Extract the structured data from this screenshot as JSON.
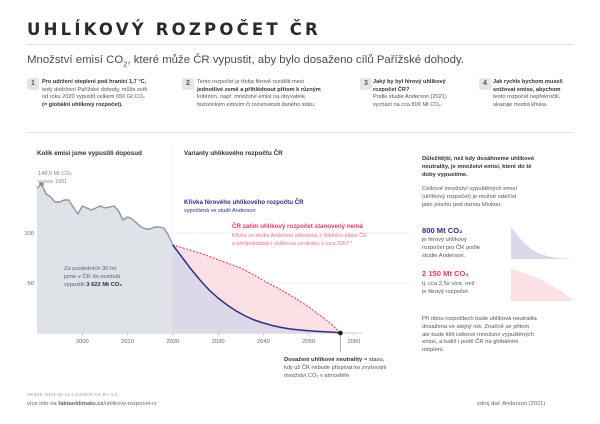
{
  "header": {
    "title": "UHLÍKOVÝ ROZPOČET ČR",
    "subtitle_pre": "Množství emisí CO",
    "subtitle_sub": "2",
    "subtitle_post": ", které může ČR vypustit, aby bylo dosaženo cílů Pařížské dohody."
  },
  "steps": [
    {
      "num": "1",
      "l1": "Pro udržení oteplení pod hranicí 1,7 °C,",
      "l2": "tedy dodržení Pařížské dohody, může svět",
      "l3": "od roku 2020 vypustit celkem 650 Gt CO₂",
      "l4": "(= globální uhlíkový rozpočet)."
    },
    {
      "num": "2",
      "l1": "Tento rozpočet je třeba férově rozdělit mezi",
      "l2": "jednotlivé země a přihlédnout přitom k různým",
      "l3": "kritériím, např. množství emisí na obyvatele,",
      "l4": "historickým emisím či rozvinutosti daného státu."
    },
    {
      "num": "3",
      "l1": "Jaký by byl férový uhlíkový",
      "l2": "rozpočet ČR?",
      "l3": "Podle studie Anderson (2021)",
      "l4": "vychází na cca 800 Mt CO₂."
    },
    {
      "num": "4",
      "l1": "Jak rychle bychom museli",
      "l2": "snižovat emise, abychom",
      "l3": "tento rozpočet nepřekročili,",
      "l4": "ukazuje modrá křivka."
    }
  ],
  "chart_labels": {
    "past_heading": "Kolik emisí jsme vypustili doposud",
    "future_heading": "Varianty uhlíkového rozpočtu ČR",
    "peak_value": "148,9 Mt CO₂",
    "peak_year": "v roce 1991",
    "past_total_l1": "Za posledních 30 let",
    "past_total_l2": "jsme v ČR do ovzduší",
    "past_total_l3_pre": "vypustili ",
    "past_total_l3_value": "3 622 Mt CO₂",
    "blue_curve_title": "Křivka férového uhlíkového rozpočtu ČR",
    "blue_curve_sub": "vypočtená ve studii Anderson",
    "red_curve_title": "ČR zatím uhlíkový rozpočet stanovený nemá",
    "red_curve_sub1": "Křivka ze studie Anderson odvozená z vládního plánu ČR",
    "red_curve_sub2": "a předpokládající uhlíkovou neutralitu v roce 2057 *",
    "neutral_title": "Dosažení uhlíkové neutrality",
    "neutral_l1": " = stavu,",
    "neutral_l2": "kdy už ČR nebude přispívat ke zvyšování",
    "neutral_l3": "množství CO₂ v atmosféře"
  },
  "side_panel": {
    "p1_l1": "Důležitější, než kdy dosáhneme uhlíkové",
    "p1_l2": "neutrality, je množství emisí, které do té",
    "p1_l3": "doby vypustíme.",
    "p2_l1": "Celkové množství vypuštěných emisí",
    "p2_l2": "(uhlíkový rozpočet) je možné odečíst",
    "p2_l3": "jako plochu pod danou křivkou.",
    "blue_value": "800 Mt CO₂",
    "blue_l1": "je férový uhlíkový",
    "blue_l2": "rozpočet pro ČR podle",
    "blue_l3": "studie Anderson.",
    "red_value": "2 150 Mt CO₂",
    "red_l1": "tj. cca 2,5x více, než",
    "red_l2": "je férový rozpočet.",
    "p3_l1": "Při obou rozpočtech bude uhlíková neutralita",
    "p3_l2": "dosažena ve stejný rok. Značně se přitom",
    "p3_l3": "ale bude lišit celkové množství vypuštěných",
    "p3_l4": "emisí, a tudíž i podíl ČR na globálním",
    "p3_l5": "oteplení."
  },
  "footer": {
    "version": "VERZE 2023-01-13   LICENCE CC BY 4.0",
    "info_pre": "více info na ",
    "info_site": "faktaoklimatu.cz",
    "info_path": "/uhlikovy-rozpocet-cr",
    "source": "zdroj dat: Anderson (2021)"
  },
  "colors": {
    "history": "#8a95a1",
    "history_fill": "#dfe3e7",
    "blue": "#2e2f87",
    "blue_fill": "#dcd8ea",
    "red": "#e83a57",
    "red_fill": "#fbe1e6",
    "pink_text": "#ee6f85"
  },
  "chart_data": {
    "type": "area",
    "x_ticks": [
      "2000",
      "2010",
      "2020",
      "2030",
      "2040",
      "2050",
      "2060"
    ],
    "y_ticks": [
      "50",
      "100"
    ],
    "xlim": [
      1990,
      2062
    ],
    "ylim": [
      0,
      160
    ],
    "series": [
      {
        "name": "historical",
        "x": [
          1990,
          1991,
          1992,
          1993,
          1994,
          1995,
          1996,
          1997,
          1998,
          1999,
          2000,
          2001,
          2002,
          2003,
          2004,
          2005,
          2006,
          2007,
          2008,
          2009,
          2010,
          2011,
          2012,
          2013,
          2014,
          2015,
          2016,
          2017,
          2018,
          2019,
          2020
        ],
        "y": [
          145,
          148.9,
          139,
          136,
          131,
          131,
          133,
          133,
          126,
          119,
          127,
          125,
          123,
          125,
          127,
          125,
          126,
          127,
          122,
          113,
          116,
          114,
          110,
          106,
          104,
          104,
          106,
          106,
          105,
          98,
          88
        ]
      },
      {
        "name": "Křivka férového uhlíkového rozpočtu ČR",
        "x": [
          2020,
          2022,
          2024,
          2026,
          2028,
          2030,
          2032,
          2034,
          2036,
          2038,
          2040,
          2042,
          2044,
          2046,
          2048,
          2050,
          2052,
          2054,
          2056,
          2057
        ],
        "y": [
          88,
          76,
          64,
          53,
          43,
          35,
          28,
          22,
          17,
          13,
          10,
          7.5,
          5.5,
          4,
          3,
          2.2,
          1.6,
          1.1,
          0.6,
          0
        ]
      },
      {
        "name": "ČR zatím uhlíkový rozpočet stanovený nemá",
        "x": [
          2020,
          2023,
          2026,
          2029,
          2032,
          2035,
          2038,
          2041,
          2044,
          2047,
          2050,
          2053,
          2055,
          2057
        ],
        "y": [
          88,
          84,
          80,
          75,
          70,
          65,
          58,
          50,
          43,
          35,
          26,
          16,
          9,
          0
        ]
      }
    ]
  }
}
